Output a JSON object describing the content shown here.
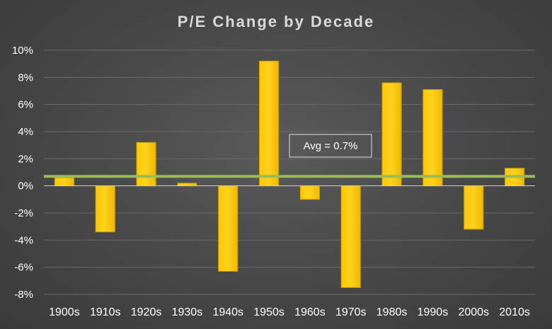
{
  "chart_data": {
    "type": "bar",
    "title": "P/E Change by Decade",
    "categories": [
      "1900s",
      "1910s",
      "1920s",
      "1930s",
      "1940s",
      "1950s",
      "1960s",
      "1970s",
      "1980s",
      "1990s",
      "2000s",
      "2010s"
    ],
    "values": [
      0.6,
      -3.4,
      3.2,
      0.2,
      -6.3,
      9.2,
      -1.0,
      -7.5,
      7.6,
      7.1,
      -3.2,
      1.3
    ],
    "value_unit": "%",
    "ylim": [
      -8,
      10
    ],
    "yticks": [
      10,
      8,
      6,
      4,
      2,
      0,
      -2,
      -4,
      -6,
      -8
    ],
    "ytick_labels": [
      "10%",
      "8%",
      "6%",
      "4%",
      "2%",
      "0%",
      "-2%",
      "-4%",
      "-6%",
      "-8%"
    ],
    "grid": true,
    "average": {
      "value": 0.7,
      "label": "Avg = 0.7%"
    },
    "colors": {
      "bar": "#ffc800",
      "bar_highlight": "#ffe070",
      "average_line": "#9bbb59"
    }
  }
}
